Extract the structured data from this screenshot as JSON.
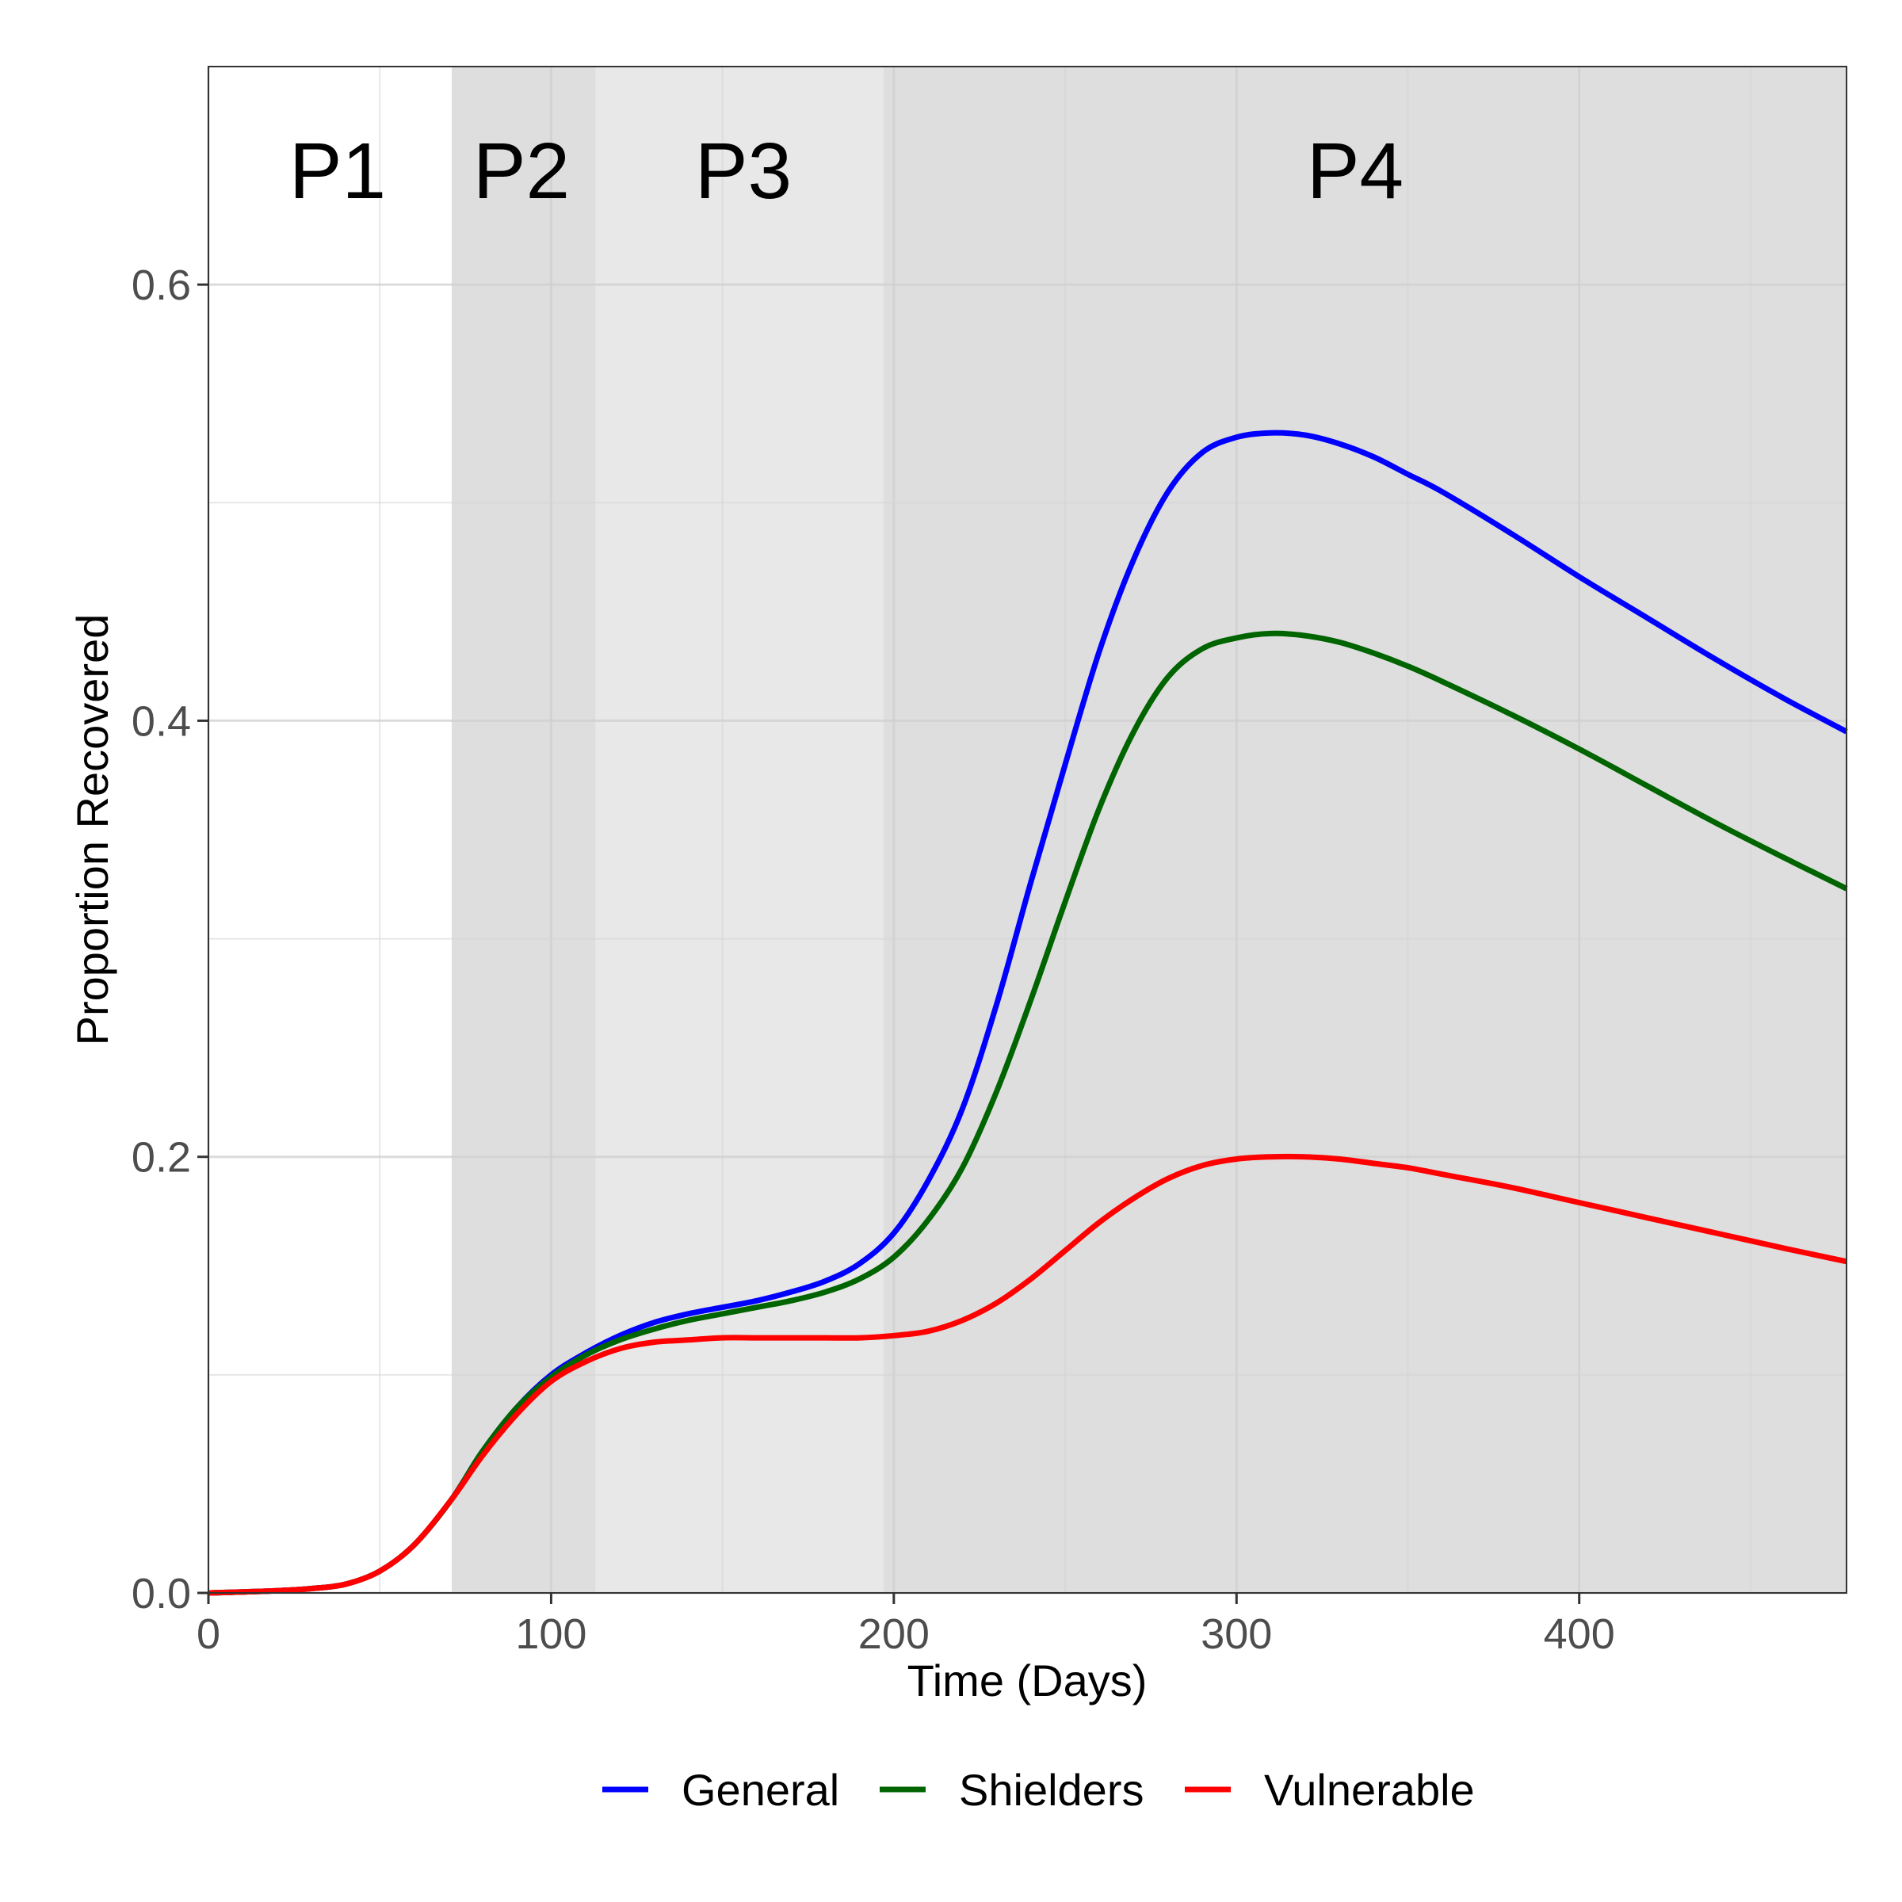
{
  "chart_data": {
    "type": "line",
    "title": "",
    "xlabel": "Time (Days)",
    "ylabel": "Proportion Recovered",
    "xlim": [
      0,
      478
    ],
    "ylim": [
      0,
      0.7
    ],
    "x_ticks": [
      0,
      100,
      200,
      300,
      400
    ],
    "x_tick_labels": [
      "0",
      "100",
      "200",
      "300",
      "400"
    ],
    "y_ticks": [
      0.0,
      0.2,
      0.4,
      0.6
    ],
    "y_tick_labels": [
      "0.0",
      "0.2",
      "0.4",
      "0.6"
    ],
    "grid": true,
    "legend_position": "bottom",
    "phases": [
      {
        "label": "P1",
        "start": 0,
        "end": 71,
        "color": "#ffffff"
      },
      {
        "label": "P2",
        "start": 71,
        "end": 113,
        "color": "#dedede"
      },
      {
        "label": "P3",
        "start": 113,
        "end": 197,
        "color": "#e8e8e8"
      },
      {
        "label": "P4",
        "start": 197,
        "end": 478,
        "color": "#dedede"
      }
    ],
    "series": [
      {
        "name": "General",
        "color": "#0000ff",
        "x": [
          0,
          20,
          30,
          40,
          50,
          60,
          71,
          80,
          90,
          100,
          110,
          120,
          130,
          140,
          150,
          160,
          170,
          180,
          190,
          200,
          210,
          220,
          230,
          240,
          250,
          260,
          270,
          280,
          290,
          300,
          310,
          320,
          330,
          340,
          350,
          360,
          380,
          400,
          420,
          440,
          460,
          478
        ],
        "y": [
          0,
          0.001,
          0.002,
          0.004,
          0.01,
          0.022,
          0.043,
          0.065,
          0.085,
          0.1,
          0.11,
          0.118,
          0.124,
          0.128,
          0.131,
          0.134,
          0.138,
          0.143,
          0.151,
          0.165,
          0.189,
          0.222,
          0.27,
          0.326,
          0.38,
          0.432,
          0.474,
          0.505,
          0.523,
          0.53,
          0.532,
          0.531,
          0.527,
          0.521,
          0.513,
          0.505,
          0.486,
          0.466,
          0.447,
          0.428,
          0.41,
          0.395
        ]
      },
      {
        "name": "Shielders",
        "color": "#006400",
        "x": [
          0,
          20,
          30,
          40,
          50,
          60,
          71,
          80,
          90,
          100,
          110,
          120,
          130,
          140,
          150,
          160,
          170,
          180,
          190,
          200,
          210,
          220,
          230,
          240,
          250,
          260,
          270,
          280,
          290,
          300,
          310,
          320,
          330,
          340,
          350,
          360,
          380,
          400,
          420,
          440,
          460,
          478
        ],
        "y": [
          0,
          0.001,
          0.002,
          0.004,
          0.01,
          0.022,
          0.043,
          0.065,
          0.085,
          0.099,
          0.109,
          0.116,
          0.121,
          0.125,
          0.128,
          0.131,
          0.134,
          0.138,
          0.144,
          0.154,
          0.171,
          0.195,
          0.23,
          0.272,
          0.317,
          0.36,
          0.395,
          0.42,
          0.433,
          0.438,
          0.44,
          0.439,
          0.436,
          0.431,
          0.425,
          0.418,
          0.403,
          0.387,
          0.37,
          0.353,
          0.337,
          0.323
        ]
      },
      {
        "name": "Vulnerable",
        "color": "#ff0000",
        "x": [
          0,
          20,
          30,
          40,
          50,
          60,
          71,
          80,
          90,
          100,
          110,
          120,
          130,
          140,
          150,
          160,
          170,
          180,
          190,
          200,
          210,
          220,
          230,
          240,
          250,
          260,
          270,
          280,
          290,
          300,
          310,
          320,
          330,
          340,
          350,
          360,
          380,
          400,
          420,
          440,
          460,
          478
        ],
        "y": [
          0,
          0.001,
          0.002,
          0.004,
          0.01,
          0.022,
          0.043,
          0.063,
          0.082,
          0.097,
          0.106,
          0.112,
          0.115,
          0.116,
          0.117,
          0.117,
          0.117,
          0.117,
          0.117,
          0.118,
          0.12,
          0.125,
          0.133,
          0.144,
          0.157,
          0.17,
          0.181,
          0.19,
          0.196,
          0.199,
          0.2,
          0.2,
          0.199,
          0.197,
          0.195,
          0.192,
          0.186,
          0.179,
          0.172,
          0.165,
          0.158,
          0.152
        ]
      }
    ]
  }
}
